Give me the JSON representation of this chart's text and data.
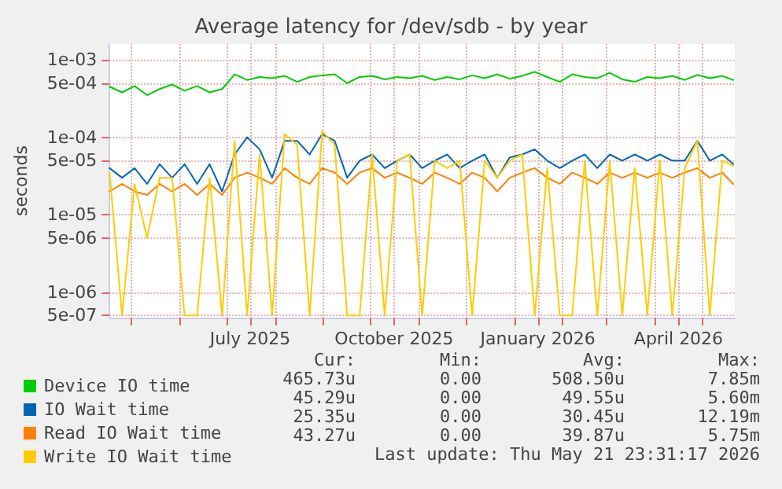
{
  "chart_data": {
    "type": "line",
    "title": "Average latency for /dev/sdb - by year",
    "ylabel": "seconds",
    "log": "y",
    "grid": true,
    "legend": "bottom",
    "marker": "none",
    "line_style": "solid",
    "x": [
      "2025-04-17",
      "2025-04-25",
      "2025-05-03",
      "2025-05-11",
      "2025-05-19",
      "2025-05-27",
      "2025-06-04",
      "2025-06-12",
      "2025-06-20",
      "2025-06-28",
      "2025-07-06",
      "2025-07-14",
      "2025-07-22",
      "2025-07-30",
      "2025-08-07",
      "2025-08-15",
      "2025-08-23",
      "2025-08-31",
      "2025-09-08",
      "2025-09-16",
      "2025-09-24",
      "2025-10-02",
      "2025-10-10",
      "2025-10-18",
      "2025-10-26",
      "2025-11-03",
      "2025-11-11",
      "2025-11-19",
      "2025-11-27",
      "2025-12-05",
      "2025-12-13",
      "2025-12-21",
      "2025-12-29",
      "2026-01-06",
      "2026-01-14",
      "2026-01-22",
      "2026-01-30",
      "2026-02-07",
      "2026-02-15",
      "2026-02-23",
      "2026-03-03",
      "2026-03-11",
      "2026-03-19",
      "2026-03-27",
      "2026-04-04",
      "2026-04-12",
      "2026-04-20",
      "2026-04-28",
      "2026-05-06",
      "2026-05-14",
      "2026-05-21"
    ],
    "xlim": [
      "2025-04-17",
      "2026-05-22"
    ],
    "xticks": [
      {
        "value": "2025-05-01",
        "label": null
      },
      {
        "value": "2025-06-01",
        "label": null
      },
      {
        "value": "2025-07-01",
        "label": null
      },
      {
        "value": "2025-07-16",
        "label": "July 2025"
      },
      {
        "value": "2025-08-01",
        "label": null
      },
      {
        "value": "2025-09-01",
        "label": null
      },
      {
        "value": "2025-10-01",
        "label": null
      },
      {
        "value": "2025-10-16",
        "label": "October 2025"
      },
      {
        "value": "2025-11-01",
        "label": null
      },
      {
        "value": "2025-12-01",
        "label": null
      },
      {
        "value": "2026-01-01",
        "label": null
      },
      {
        "value": "2026-01-16",
        "label": "January 2026"
      },
      {
        "value": "2026-02-01",
        "label": null
      },
      {
        "value": "2026-03-01",
        "label": null
      },
      {
        "value": "2026-04-01",
        "label": null
      },
      {
        "value": "2026-04-16",
        "label": "April 2026"
      },
      {
        "value": "2026-05-01",
        "label": null
      }
    ],
    "ylim": [
      4.7e-07,
      0.0016
    ],
    "yticks": [
      {
        "value": 5e-07,
        "label": "5e-07"
      },
      {
        "value": 1e-06,
        "label": "1e-06"
      },
      {
        "value": 5e-06,
        "label": "5e-06"
      },
      {
        "value": 1e-05,
        "label": "1e-05"
      },
      {
        "value": 5e-05,
        "label": "5e-05"
      },
      {
        "value": 0.0001,
        "label": "1e-04"
      },
      {
        "value": 0.0005,
        "label": "5e-04"
      },
      {
        "value": 0.001,
        "label": "1e-03"
      }
    ],
    "series": [
      {
        "name": "Device IO time",
        "color": "#00cc00",
        "values": [
          0.00045,
          0.00038,
          0.00046,
          0.00035,
          0.00042,
          0.00048,
          0.0004,
          0.00046,
          0.00038,
          0.00042,
          0.00065,
          0.00055,
          0.0006,
          0.00058,
          0.00062,
          0.00052,
          0.0006,
          0.00063,
          0.00065,
          0.0005,
          0.0006,
          0.00062,
          0.00056,
          0.0006,
          0.00058,
          0.00062,
          0.00055,
          0.0006,
          0.00056,
          0.00063,
          0.00058,
          0.00065,
          0.00057,
          0.00062,
          0.0007,
          0.0006,
          0.00052,
          0.00065,
          0.0006,
          0.00058,
          0.00068,
          0.00056,
          0.00052,
          0.0006,
          0.00058,
          0.00062,
          0.00055,
          0.00064,
          0.00058,
          0.00062,
          0.00055
        ]
      },
      {
        "name": "IO Wait time",
        "color": "#0066b3",
        "values": [
          4e-05,
          3e-05,
          4e-05,
          2.5e-05,
          4.5e-05,
          3e-05,
          4.5e-05,
          2.5e-05,
          4.5e-05,
          2e-05,
          6e-05,
          0.0001,
          7e-05,
          3e-05,
          9e-05,
          9e-05,
          6e-05,
          0.00011,
          9e-05,
          3e-05,
          5e-05,
          6e-05,
          4e-05,
          5e-05,
          6e-05,
          4e-05,
          5e-05,
          6e-05,
          4e-05,
          5e-05,
          6e-05,
          3e-05,
          5.5e-05,
          6e-05,
          7e-05,
          5e-05,
          4e-05,
          5e-05,
          6e-05,
          4e-05,
          6e-05,
          5e-05,
          6e-05,
          5e-05,
          6e-05,
          5e-05,
          5e-05,
          9e-05,
          5e-05,
          6e-05,
          4.5e-05
        ]
      },
      {
        "name": "Read IO Wait time",
        "color": "#ff8000",
        "values": [
          2e-05,
          2.5e-05,
          2e-05,
          1.8e-05,
          2.5e-05,
          2e-05,
          2.5e-05,
          1.8e-05,
          2.5e-05,
          1.8e-05,
          3e-05,
          3.5e-05,
          3e-05,
          2.5e-05,
          4e-05,
          3e-05,
          2.5e-05,
          4e-05,
          3.5e-05,
          2.5e-05,
          3.5e-05,
          4e-05,
          3e-05,
          3.5e-05,
          3e-05,
          2.5e-05,
          3.5e-05,
          3e-05,
          2.5e-05,
          3.5e-05,
          3e-05,
          2e-05,
          3e-05,
          3.5e-05,
          4e-05,
          3e-05,
          2.5e-05,
          3.5e-05,
          3e-05,
          2.5e-05,
          3.5e-05,
          3e-05,
          3.5e-05,
          3e-05,
          3.5e-05,
          3e-05,
          3.5e-05,
          4e-05,
          3e-05,
          3.5e-05,
          2.5e-05
        ]
      },
      {
        "name": "Write IO Wait time",
        "color": "#ffcc00",
        "values": [
          3.5e-05,
          5e-07,
          2.5e-05,
          5e-06,
          3e-05,
          3e-05,
          5e-07,
          5e-07,
          3e-05,
          5e-07,
          9e-05,
          5e-07,
          6e-05,
          5e-07,
          0.00011,
          8e-05,
          5e-07,
          0.00012,
          8e-05,
          5e-07,
          5e-07,
          6e-05,
          5e-07,
          5e-05,
          6e-05,
          5e-07,
          5e-05,
          4e-05,
          5e-05,
          5e-07,
          5e-05,
          3e-05,
          5e-05,
          6e-05,
          5e-07,
          4e-05,
          5e-07,
          5e-07,
          5e-05,
          5e-07,
          5e-05,
          5e-07,
          4e-05,
          5e-07,
          5e-05,
          5e-07,
          4e-05,
          9e-05,
          5e-07,
          5e-05,
          4.3e-05
        ]
      }
    ],
    "annotations": [
      "Cur:",
      "Min:",
      "Avg:",
      "Max:",
      "465.73u",
      "0.00",
      "508.50u",
      "7.85m",
      "45.29u",
      "0.00",
      "49.55u",
      "5.60m",
      "25.35u",
      "0.00",
      "30.45u",
      "12.19m",
      "43.27u",
      "0.00",
      "39.87u",
      "5.75m",
      "Last update: Thu May 21 23:31:17 2026"
    ]
  }
}
